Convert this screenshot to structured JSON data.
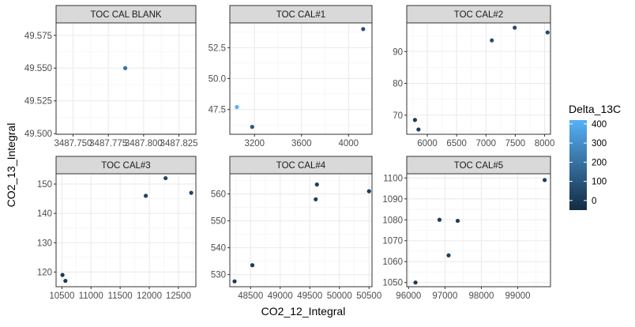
{
  "figure": {
    "xlabel": "CO2_12_Integral",
    "ylabel": "CO2_13_Integral"
  },
  "legend": {
    "title": "Delta_13C",
    "ticks": [
      0,
      100,
      200,
      300,
      400
    ],
    "color_low": "#132B43",
    "color_high": "#56B1F7",
    "range": [
      -50,
      420
    ]
  },
  "chart_data": [
    {
      "type": "scatter",
      "title": "TOC CAL BLANK",
      "xlim": [
        3487.738,
        3487.837
      ],
      "ylim": [
        49.4995,
        49.5845
      ],
      "xticks": [
        3487.75,
        3487.775,
        3487.8,
        3487.825
      ],
      "xtick_labels": [
        "3487.750",
        "3487.775",
        "3487.800",
        "3487.825"
      ],
      "yticks": [
        49.5,
        49.525,
        49.55,
        49.575
      ],
      "ytick_labels": [
        "49.500",
        "49.525",
        "49.550",
        "49.575"
      ],
      "points": [
        {
          "x": 3487.787,
          "y": 49.55,
          "c": 200
        }
      ]
    },
    {
      "type": "scatter",
      "title": "TOC CAL#1",
      "xlim": [
        2990,
        4200
      ],
      "ylim": [
        45.5,
        54.5
      ],
      "xticks": [
        3200,
        3600,
        4000
      ],
      "xtick_labels": [
        "3200",
        "3600",
        "4000"
      ],
      "yticks": [
        47.5,
        50.0,
        52.5
      ],
      "ytick_labels": [
        "47.5",
        "50.0",
        "52.5"
      ],
      "points": [
        {
          "x": 4125,
          "y": 54.0,
          "c": 80
        },
        {
          "x": 3050,
          "y": 47.7,
          "c": 420
        },
        {
          "x": 3180,
          "y": 46.1,
          "c": 110
        }
      ]
    },
    {
      "type": "scatter",
      "title": "TOC CAL#2",
      "xlim": [
        5650,
        8100
      ],
      "ylim": [
        64,
        99
      ],
      "xticks": [
        6000,
        6500,
        7000,
        7500,
        8000
      ],
      "xtick_labels": [
        "6000",
        "6500",
        "7000",
        "7500",
        "8000"
      ],
      "yticks": [
        70,
        80,
        90
      ],
      "ytick_labels": [
        "70",
        "80",
        "90"
      ],
      "points": [
        {
          "x": 8050,
          "y": 96,
          "c": 60
        },
        {
          "x": 7490,
          "y": 97.5,
          "c": 60
        },
        {
          "x": 7100,
          "y": 93.5,
          "c": 80
        },
        {
          "x": 5790,
          "y": 68.5,
          "c": 10
        },
        {
          "x": 5850,
          "y": 65.5,
          "c": 10
        }
      ]
    },
    {
      "type": "scatter",
      "title": "TOC CAL#3",
      "xlim": [
        10400,
        12800
      ],
      "ylim": [
        115,
        153.5
      ],
      "xticks": [
        10500,
        11000,
        11500,
        12000,
        12500
      ],
      "xtick_labels": [
        "10500",
        "11000",
        "11500",
        "12000",
        "12500"
      ],
      "yticks": [
        120,
        130,
        140,
        150
      ],
      "ytick_labels": [
        "120",
        "130",
        "140",
        "150"
      ],
      "points": [
        {
          "x": 12280,
          "y": 152,
          "c": 40
        },
        {
          "x": 12720,
          "y": 147,
          "c": 40
        },
        {
          "x": 11940,
          "y": 146,
          "c": 40
        },
        {
          "x": 10510,
          "y": 119,
          "c": 5
        },
        {
          "x": 10560,
          "y": 117,
          "c": 5
        }
      ]
    },
    {
      "type": "scatter",
      "title": "TOC CAL#4",
      "xlim": [
        48150,
        50550
      ],
      "ylim": [
        525.5,
        567.5
      ],
      "xticks": [
        48500,
        49000,
        49500,
        50000,
        50500
      ],
      "xtick_labels": [
        "48500",
        "49000",
        "49500",
        "50000",
        "50500"
      ],
      "yticks": [
        530,
        540,
        550,
        560
      ],
      "ytick_labels": [
        "530",
        "540",
        "550",
        "560"
      ],
      "points": [
        {
          "x": 49620,
          "y": 563.5,
          "c": 20
        },
        {
          "x": 50500,
          "y": 561,
          "c": 20
        },
        {
          "x": 49600,
          "y": 558,
          "c": 20
        },
        {
          "x": 48530,
          "y": 533.5,
          "c": 10
        },
        {
          "x": 48230,
          "y": 527.5,
          "c": 10
        }
      ]
    },
    {
      "type": "scatter",
      "title": "TOC CAL#5",
      "xlim": [
        95950,
        99900
      ],
      "ylim": [
        1048,
        1102
      ],
      "xticks": [
        96000,
        97000,
        98000,
        99000
      ],
      "xtick_labels": [
        "96000",
        "97000",
        "98000",
        "99000"
      ],
      "yticks": [
        1050,
        1060,
        1070,
        1080,
        1090,
        1100
      ],
      "ytick_labels": [
        "1050",
        "1060",
        "1070",
        "1080",
        "1090",
        "1100"
      ],
      "points": [
        {
          "x": 99740,
          "y": 1099,
          "c": 15
        },
        {
          "x": 96850,
          "y": 1080,
          "c": 15
        },
        {
          "x": 97350,
          "y": 1079.5,
          "c": 15
        },
        {
          "x": 97100,
          "y": 1063,
          "c": 15
        },
        {
          "x": 96190,
          "y": 1050,
          "c": 5
        }
      ]
    }
  ]
}
